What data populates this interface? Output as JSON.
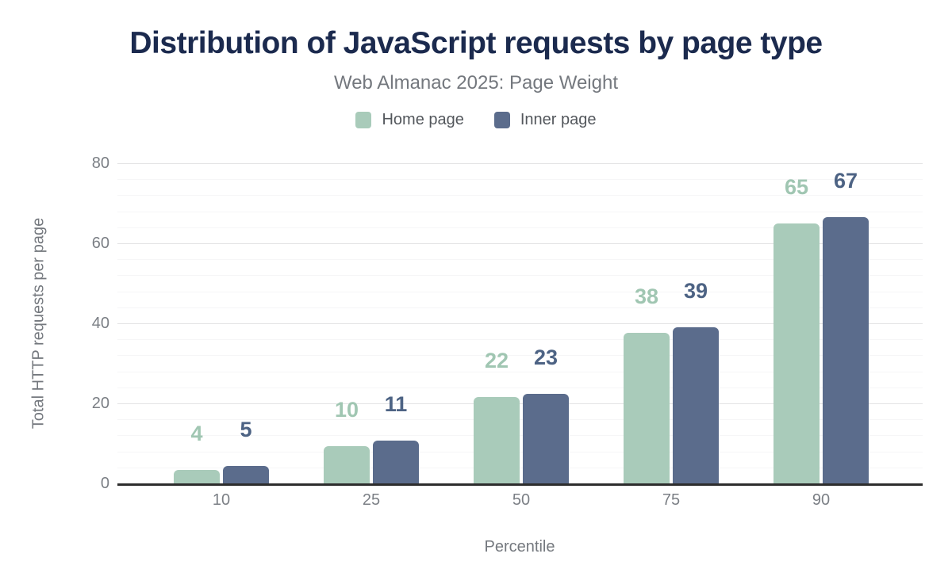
{
  "chart_data": {
    "type": "bar",
    "title": "Distribution of JavaScript requests by page type",
    "subtitle": "Web Almanac 2025: Page Weight",
    "categories": [
      "10",
      "25",
      "50",
      "75",
      "90"
    ],
    "xlabel": "Percentile",
    "ylabel": "Total HTTP requests per page",
    "ylim": [
      0,
      80
    ],
    "yticks": [
      0,
      20,
      40,
      60,
      80
    ],
    "minor_gridline_step": 4,
    "grid": "on",
    "legend_position": "top",
    "series": [
      {
        "name": "Home page",
        "color": "#a9cbba",
        "label_color": "#a0c6b2",
        "values": [
          4,
          10,
          22,
          38,
          65
        ],
        "bar_values": [
          3.4,
          9.4,
          21.6,
          37.7,
          64.9
        ]
      },
      {
        "name": "Inner page",
        "color": "#5b6c8c",
        "label_color": "#4d6384",
        "values": [
          5,
          11,
          23,
          39,
          67
        ],
        "bar_values": [
          4.4,
          10.8,
          22.4,
          39.1,
          66.6
        ]
      }
    ]
  },
  "colors": {
    "title": "#1b2a4e",
    "subtitle": "#74787e",
    "tick_labels": "#7b7f85",
    "axis_line": "#2d2d2d",
    "major_grid": "#e3e3e4",
    "minor_grid": "#f6f6f7",
    "background": "#ffffff"
  }
}
